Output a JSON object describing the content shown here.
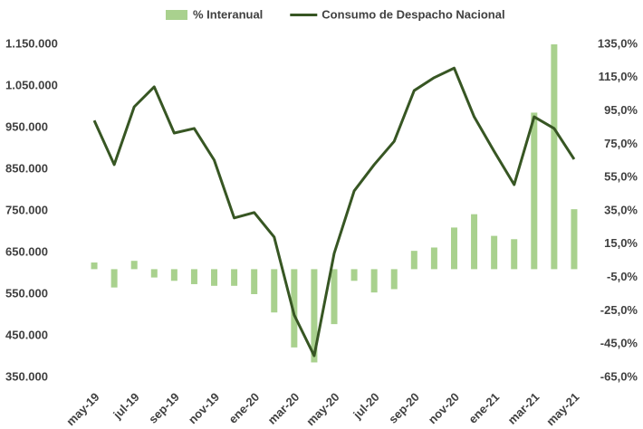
{
  "chart_data": {
    "type": "bar_line",
    "categories": [
      "may-19",
      null,
      "jul-19",
      null,
      "sep-19",
      null,
      "nov-19",
      null,
      "ene-20",
      null,
      "mar-20",
      null,
      "may-20",
      null,
      "jul-20",
      null,
      "sep-20",
      null,
      "nov-20",
      null,
      "ene-21",
      null,
      "mar-21",
      null,
      "may-21"
    ],
    "series": [
      {
        "name": "% Interanual",
        "type": "bar",
        "axis": "y2",
        "color": "#a9d18e",
        "values": [
          4,
          -11,
          5,
          -5,
          -7,
          -9,
          -10,
          -10,
          -15,
          -26,
          -47,
          -56,
          -33,
          -7,
          -14,
          -12,
          11,
          13,
          25,
          33,
          20,
          18,
          94,
          135,
          36
        ]
      },
      {
        "name": "Consumo de Despacho Nacional",
        "type": "line",
        "axis": "y",
        "color": "#375623",
        "values": [
          967000,
          861000,
          1000000,
          1048000,
          937000,
          948000,
          872000,
          733000,
          746000,
          687000,
          500000,
          402000,
          648000,
          798000,
          861000,
          917000,
          1039000,
          1070000,
          1093000,
          976000,
          893000,
          813000,
          976000,
          948000,
          874000
        ]
      }
    ],
    "ylim": [
      350000,
      1150000
    ],
    "yticks": [
      {
        "value": 350000,
        "label": "350.000"
      },
      {
        "value": 450000,
        "label": "450.000"
      },
      {
        "value": 550000,
        "label": "550.000"
      },
      {
        "value": 650000,
        "label": "650.000"
      },
      {
        "value": 750000,
        "label": "750.000"
      },
      {
        "value": 850000,
        "label": "850.000"
      },
      {
        "value": 950000,
        "label": "950.000"
      },
      {
        "value": 1050000,
        "label": "1.050.000"
      },
      {
        "value": 1150000,
        "label": "1.150.000"
      }
    ],
    "y2lim": [
      -65,
      135
    ],
    "y2ticks": [
      {
        "value": -65,
        "label": "-65,0%"
      },
      {
        "value": -45,
        "label": "-45,0%"
      },
      {
        "value": -25,
        "label": "-25,0%"
      },
      {
        "value": -5,
        "label": "-5,0%"
      },
      {
        "value": 15,
        "label": "15,0%"
      },
      {
        "value": 35,
        "label": "35,0%"
      },
      {
        "value": 55,
        "label": "55,0%"
      },
      {
        "value": 75,
        "label": "75,0%"
      },
      {
        "value": 95,
        "label": "95,0%"
      },
      {
        "value": 115,
        "label": "115,0%"
      },
      {
        "value": 135,
        "label": "135,0%"
      }
    ],
    "legend": "top"
  }
}
